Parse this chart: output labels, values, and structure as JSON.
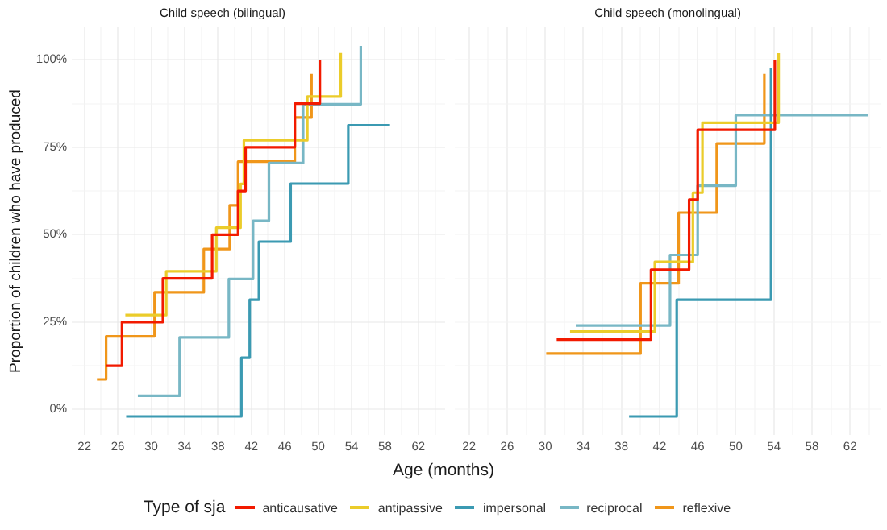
{
  "chart_data": [
    {
      "type": "step",
      "title": "Child speech (bilingual)",
      "xlabel": "Age (months)",
      "ylabel": "Proportion of children who have produced",
      "legend_title": "Type of sja",
      "legend": "bottom",
      "grid": true,
      "line_style": "solid",
      "marker": "none",
      "xlim": [
        20.5,
        65.2
      ],
      "ylim": [
        -7.3,
        109.3
      ],
      "xticks": [
        22,
        {
          "value": 24,
          "label": null
        },
        26,
        {
          "value": 28,
          "label": null
        },
        30,
        {
          "value": 32,
          "label": null
        },
        34,
        {
          "value": 36,
          "label": null
        },
        38,
        {
          "value": 40,
          "label": null
        },
        42,
        {
          "value": 44,
          "label": null
        },
        46,
        {
          "value": 48,
          "label": null
        },
        50,
        {
          "value": 52,
          "label": null
        },
        54,
        {
          "value": 56,
          "label": null
        },
        58,
        {
          "value": 60,
          "label": null
        },
        62,
        {
          "value": 64,
          "label": null
        }
      ],
      "yticks": [
        {
          "value": 0,
          "label": "0%"
        },
        {
          "value": 12.5,
          "label": null
        },
        {
          "value": 25,
          "label": "25%"
        },
        {
          "value": 37.5,
          "label": null
        },
        {
          "value": 50,
          "label": "50%"
        },
        {
          "value": 62.5,
          "label": null
        },
        {
          "value": 75,
          "label": "75%"
        },
        {
          "value": 87.5,
          "label": null
        },
        {
          "value": 100,
          "label": "100%"
        }
      ],
      "series": [
        {
          "name": "anticausative",
          "color": "#f21a00",
          "x": [
            24.6,
            26.5,
            31.4,
            37.3,
            40.4,
            41.3,
            47.2,
            50.2
          ],
          "values": [
            12.5,
            25,
            37.5,
            50,
            62.5,
            75,
            87.5,
            100
          ]
        },
        {
          "name": "antipassive",
          "color": "#ebcc2a",
          "x": [
            26.9,
            31.8,
            37.8,
            40.7,
            41.1,
            48.7,
            52.7
          ],
          "values": [
            27,
            39.5,
            52,
            64.5,
            77,
            89.5,
            102
          ]
        },
        {
          "name": "impersonal",
          "color": "#3b9ab2",
          "x": [
            27,
            40.8,
            41.8,
            42.9,
            46.7,
            53.6,
            58.6
          ],
          "values": [
            -2,
            14.8,
            31.4,
            48,
            64.6,
            81.3,
            81.3
          ]
        },
        {
          "name": "reciprocal",
          "color": "#78b7c5",
          "x": [
            28.4,
            33.4,
            39.3,
            42.2,
            44.1,
            48.2,
            55.1
          ],
          "values": [
            3.9,
            20.6,
            37.3,
            54,
            70.5,
            87.3,
            104
          ]
        },
        {
          "name": "reflexive",
          "color": "#f0961a",
          "x": [
            23.5,
            24.6,
            30.4,
            36.3,
            39.4,
            40.4,
            47.2,
            49.2
          ],
          "values": [
            8.6,
            20.9,
            33.5,
            45.9,
            58.4,
            70.9,
            83.5,
            96
          ]
        }
      ]
    },
    {
      "type": "step",
      "title": "Child speech (monolingual)",
      "grid": true,
      "line_style": "solid",
      "marker": "none",
      "tick_labels": "x",
      "xlim": [
        20.5,
        65.2
      ],
      "ylim": [
        -7.3,
        109.3
      ],
      "xticks": [
        22,
        {
          "value": 24,
          "label": null
        },
        26,
        {
          "value": 28,
          "label": null
        },
        30,
        {
          "value": 32,
          "label": null
        },
        34,
        {
          "value": 36,
          "label": null
        },
        38,
        {
          "value": 40,
          "label": null
        },
        42,
        {
          "value": 44,
          "label": null
        },
        46,
        {
          "value": 48,
          "label": null
        },
        50,
        {
          "value": 52,
          "label": null
        },
        54,
        {
          "value": 56,
          "label": null
        },
        58,
        {
          "value": 60,
          "label": null
        },
        62,
        {
          "value": 64,
          "label": null
        }
      ],
      "yticks": [
        {
          "value": 0,
          "label": null
        },
        {
          "value": 12.5,
          "label": null
        },
        {
          "value": 25,
          "label": null
        },
        {
          "value": 37.5,
          "label": null
        },
        {
          "value": 50,
          "label": null
        },
        {
          "value": 62.5,
          "label": null
        },
        {
          "value": 75,
          "label": null
        },
        {
          "value": 87.5,
          "label": null
        },
        {
          "value": 100,
          "label": null
        }
      ],
      "series": [
        {
          "color": "#f21a00",
          "x": [
            31.2,
            41.1,
            45.1,
            46,
            54.1
          ],
          "values": [
            20,
            40,
            60,
            80,
            100
          ]
        },
        {
          "color": "#ebcc2a",
          "x": [
            32.6,
            41.5,
            45.5,
            46.5,
            54.5
          ],
          "values": [
            22.3,
            42.2,
            62,
            82,
            101.9
          ]
        },
        {
          "color": "#3b9ab2",
          "x": [
            38.8,
            43.8,
            53.7
          ],
          "values": [
            -2,
            31.4,
            97.8
          ]
        },
        {
          "color": "#78b7c5",
          "x": [
            33.2,
            43.1,
            46,
            50,
            63.9
          ],
          "values": [
            24,
            44.2,
            64,
            84.2,
            84.2
          ]
        },
        {
          "color": "#f0961a",
          "x": [
            30.1,
            40,
            44,
            48,
            53
          ],
          "values": [
            16,
            36.1,
            56.3,
            76.1,
            96
          ]
        }
      ]
    }
  ]
}
